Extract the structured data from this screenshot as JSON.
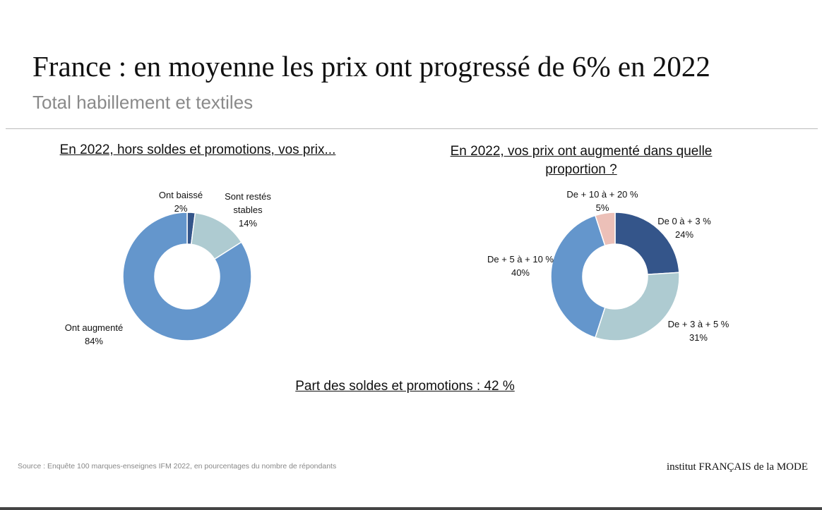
{
  "title": "France : en moyenne les prix ont progressé de 6% en 2022",
  "subtitle": "Total habillement et textiles",
  "promo_note": "Part des soldes et promotions : 42 %",
  "source": "Source : Enquête 100 marques-enseignes IFM 2022, en pourcentages du nombre de répondants",
  "logo": "institut FRANÇAIS de la MODE",
  "colors": {
    "dark": "#34558a",
    "light": "#aecbd1",
    "mid": "#6496cc",
    "pink": "#ecc0b8"
  },
  "chart_data": [
    {
      "type": "pie",
      "donut": true,
      "title": "En 2022, hors soldes et promotions, vos prix...",
      "slices": [
        {
          "label": "Ont baissé",
          "value": 2,
          "display": "2%",
          "color": "#34558a"
        },
        {
          "label": "Sont restés stables",
          "value": 14,
          "display": "14%",
          "color": "#aecbd1"
        },
        {
          "label": "Ont augmenté",
          "value": 84,
          "display": "84%",
          "color": "#6496cc"
        }
      ]
    },
    {
      "type": "pie",
      "donut": true,
      "title": "En 2022, vos prix ont augmenté dans quelle proportion ?",
      "slices": [
        {
          "label": "De 0 à + 3 %",
          "value": 24,
          "display": "24%",
          "color": "#34558a"
        },
        {
          "label": "De + 3 à + 5 %",
          "value": 31,
          "display": "31%",
          "color": "#aecbd1"
        },
        {
          "label": "De + 5 à + 10 %",
          "value": 40,
          "display": "40%",
          "color": "#6496cc"
        },
        {
          "label": "De + 10 à + 20 %",
          "value": 5,
          "display": "5%",
          "color": "#ecc0b8"
        }
      ]
    }
  ]
}
